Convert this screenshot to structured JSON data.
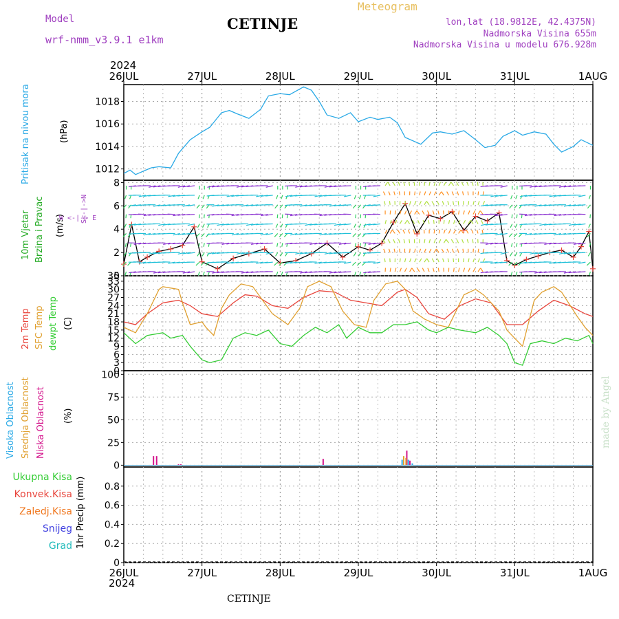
{
  "header": {
    "model_label": "Model",
    "model_name": "wrf-nmm_v3.9.1 e1km",
    "station": "CETINJE",
    "meteogram": "Meteogram",
    "coords": "lon,lat (18.9812E, 42.4375N)",
    "elevation": "Nadmorska Visina 655m",
    "model_elevation": "Nadmorska Visina u modelu 676.928m",
    "year": "2024",
    "footer_station": "CETINJE",
    "credit": "made by Angel"
  },
  "colors": {
    "pressure": "#29a9e6",
    "wind_label": "#2ecc40",
    "wind_label2": "#22aa22",
    "t2m": "#e8453c",
    "tsfc": "#e0a030",
    "dew": "#33cc33",
    "high_cloud": "#29a9e6",
    "mid_cloud": "#e0a030",
    "low_cloud": "#d4148c",
    "model": "#a040c0",
    "total_precip": "#33cc33",
    "conv_precip": "#e8453c",
    "frozen_precip": "#f07820",
    "snow": "#4040e0",
    "hail": "#22bbbb"
  },
  "labels": {
    "pressure": [
      "Pritisak na nivou mora"
    ],
    "pressure_unit": "(hPa)",
    "wind": [
      "10m Vjetar",
      "Brzina i Pravac"
    ],
    "wind_unit": "(m/s)",
    "wind_compass": "W <-|-> E",
    "wind_compass2": "S<-|->N",
    "temp": [
      "2m Temp",
      "SFC Temp",
      "dewpt Temp"
    ],
    "temp_unit": "(C)",
    "cloud": [
      "Visoka Oblacnost",
      "Srednja Oblacnost",
      "Niska Oblacnost"
    ],
    "cloud_unit": "(%)",
    "precip": [
      "Ukupna Kisa",
      "Konvek.Kisa",
      "Zaledj.Kisa",
      "Snijeg",
      "Grad"
    ],
    "precip_unit": "1hr Precip (mm)"
  },
  "chart_data": {
    "type": "line",
    "days": [
      "26JUL",
      "27JUL",
      "28JUL",
      "29JUL",
      "30JUL",
      "31JUL",
      "1AUG"
    ],
    "panels": [
      {
        "name": "pressure",
        "ylim": [
          1011,
          1019.5
        ],
        "yticks": [
          "1012",
          "1014",
          "1016",
          "1018"
        ],
        "series": [
          {
            "key": "pressure",
            "x": [
              0,
              0.08,
              0.15,
              0.25,
              0.35,
              0.45,
              0.6,
              0.7,
              0.85,
              1,
              1.1,
              1.25,
              1.35,
              1.45,
              1.6,
              1.75,
              1.85,
              2,
              2.12,
              2.3,
              2.4,
              2.5,
              2.6,
              2.75,
              2.9,
              3,
              3.15,
              3.25,
              3.4,
              3.5,
              3.6,
              3.8,
              3.95,
              4.05,
              4.2,
              4.35,
              4.5,
              4.62,
              4.75,
              4.85,
              5,
              5.1,
              5.25,
              5.4,
              5.5,
              5.6,
              5.75,
              5.85,
              6
            ],
            "y": [
              1011.6,
              1011.9,
              1011.5,
              1011.8,
              1012.1,
              1012.2,
              1012.1,
              1013.4,
              1014.6,
              1015.3,
              1015.7,
              1017,
              1017.2,
              1016.9,
              1016.5,
              1017.3,
              1018.5,
              1018.7,
              1018.6,
              1019.3,
              1019,
              1018,
              1016.8,
              1016.5,
              1017,
              1016.2,
              1016.6,
              1016.4,
              1016.6,
              1016.1,
              1014.8,
              1014.2,
              1015.2,
              1015.3,
              1015.1,
              1015.4,
              1014.6,
              1013.9,
              1014.1,
              1014.9,
              1015.4,
              1015,
              1015.3,
              1015.1,
              1014.2,
              1013.5,
              1014,
              1014.6,
              1014.1
            ]
          }
        ]
      },
      {
        "name": "wind",
        "ylim": [
          0,
          8.2
        ],
        "yticks": [
          "0",
          "2",
          "4",
          "6",
          "8"
        ],
        "series": [
          {
            "key": "wind_speed",
            "x": [
              0,
              0.1,
              0.2,
              0.3,
              0.45,
              0.6,
              0.75,
              0.9,
              1,
              1.2,
              1.4,
              1.6,
              1.8,
              2,
              2.2,
              2.4,
              2.6,
              2.8,
              3,
              3.15,
              3.3,
              3.45,
              3.6,
              3.75,
              3.9,
              4.05,
              4.2,
              4.35,
              4.5,
              4.65,
              4.8,
              4.9,
              5,
              5.15,
              5.3,
              5.45,
              5.6,
              5.75,
              5.85,
              5.95,
              6
            ],
            "y": [
              1,
              4.4,
              1.2,
              1.6,
              2.1,
              2.3,
              2.6,
              4.2,
              1.2,
              0.6,
              1.5,
              1.9,
              2.3,
              1.1,
              1.3,
              1.9,
              2.8,
              1.6,
              2.5,
              2.2,
              2.8,
              4.6,
              6.2,
              3.6,
              5.2,
              4.9,
              5.5,
              3.9,
              5.1,
              4.7,
              5.4,
              1.3,
              0.9,
              1.4,
              1.7,
              2,
              2.2,
              1.6,
              2.5,
              3.8,
              0.6
            ]
          }
        ]
      },
      {
        "name": "temp",
        "ylim": [
          0,
          35
        ],
        "yticks": [
          "0",
          "3",
          "6",
          "9",
          "12",
          "15",
          "18",
          "21",
          "24",
          "27",
          "30",
          "33",
          "35"
        ],
        "series": [
          {
            "key": "t2m",
            "x": [
              0,
              0.15,
              0.3,
              0.5,
              0.7,
              0.85,
              1,
              1.2,
              1.4,
              1.55,
              1.7,
              1.9,
              2.1,
              2.3,
              2.5,
              2.7,
              2.9,
              3.1,
              3.3,
              3.5,
              3.6,
              3.75,
              3.9,
              4.1,
              4.3,
              4.5,
              4.7,
              4.9,
              5.1,
              5.3,
              5.5,
              5.7,
              5.9,
              6
            ],
            "y": [
              18,
              17,
              21,
              25,
              26,
              24,
              21,
              20,
              25,
              28,
              27.5,
              24,
              23,
              27,
              29.5,
              29,
              26,
              25,
              24,
              29,
              30,
              27,
              21,
              19,
              24,
              26.5,
              25,
              17,
              17,
              22,
              26,
              24,
              21,
              20
            ]
          },
          {
            "key": "tsfc",
            "x": [
              0,
              0.15,
              0.3,
              0.45,
              0.5,
              0.7,
              0.75,
              0.85,
              1,
              1.05,
              1.15,
              1.25,
              1.35,
              1.5,
              1.65,
              1.8,
              1.9,
              2.1,
              2.25,
              2.35,
              2.5,
              2.65,
              2.8,
              2.95,
              3.1,
              3.2,
              3.35,
              3.5,
              3.6,
              3.7,
              3.85,
              4,
              4.15,
              4.25,
              4.35,
              4.5,
              4.6,
              4.8,
              4.9,
              5,
              5.1,
              5.25,
              5.35,
              5.5,
              5.6,
              5.8,
              5.9,
              6
            ],
            "y": [
              16,
              14,
              21,
              30,
              31,
              30,
              25,
              17,
              18,
              16,
              13,
              23,
              28,
              32,
              31,
              25,
              21,
              17,
              23,
              31,
              33,
              31,
              22,
              17,
              16,
              26,
              32,
              33,
              30,
              22,
              19,
              17,
              16,
              22,
              28,
              30,
              28,
              22,
              15,
              12,
              9,
              26,
              29,
              31,
              29,
              20,
              16,
              13
            ]
          },
          {
            "key": "dew",
            "x": [
              0,
              0.15,
              0.3,
              0.5,
              0.6,
              0.75,
              0.85,
              1,
              1.1,
              1.25,
              1.4,
              1.55,
              1.7,
              1.85,
              2,
              2.15,
              2.3,
              2.45,
              2.6,
              2.75,
              2.85,
              3,
              3.15,
              3.3,
              3.45,
              3.6,
              3.75,
              3.9,
              4,
              4.15,
              4.3,
              4.5,
              4.65,
              4.8,
              4.9,
              5,
              5.1,
              5.2,
              5.35,
              5.5,
              5.65,
              5.8,
              5.95,
              6
            ],
            "y": [
              14,
              10,
              13,
              14,
              12,
              13,
              9,
              4,
              3,
              4,
              12,
              14,
              13,
              15,
              10,
              9,
              13,
              16,
              14,
              17,
              12,
              16,
              14,
              14,
              17,
              17,
              18,
              15,
              14,
              16,
              15,
              14,
              16,
              13,
              10,
              3,
              2,
              10,
              11,
              10,
              12,
              11,
              13,
              10
            ]
          }
        ]
      },
      {
        "name": "cloud",
        "ylim": [
          -2,
          104
        ],
        "yticks": [
          "0",
          "25",
          "50",
          "75",
          "100"
        ],
        "series": [
          {
            "key": "low_cloud",
            "type": "bar",
            "x": [
              0.38,
              0.42,
              0.7,
              0.73,
              2.55,
              3.62,
              3.66
            ],
            "y": [
              10,
              10,
              1,
              1,
              7,
              16,
              5
            ]
          },
          {
            "key": "mid_cloud",
            "type": "bar",
            "x": [
              3.58,
              3.61
            ],
            "y": [
              10,
              8
            ]
          },
          {
            "key": "high_cloud",
            "type": "bar",
            "x": [
              3.56,
              3.64,
              3.69
            ],
            "y": [
              6,
              6,
              2
            ]
          }
        ]
      },
      {
        "name": "precip",
        "ylim": [
          0,
          1
        ],
        "yticks": [
          "0",
          "0.2",
          "0.4",
          "0.6",
          "0.8"
        ],
        "series": []
      }
    ]
  }
}
